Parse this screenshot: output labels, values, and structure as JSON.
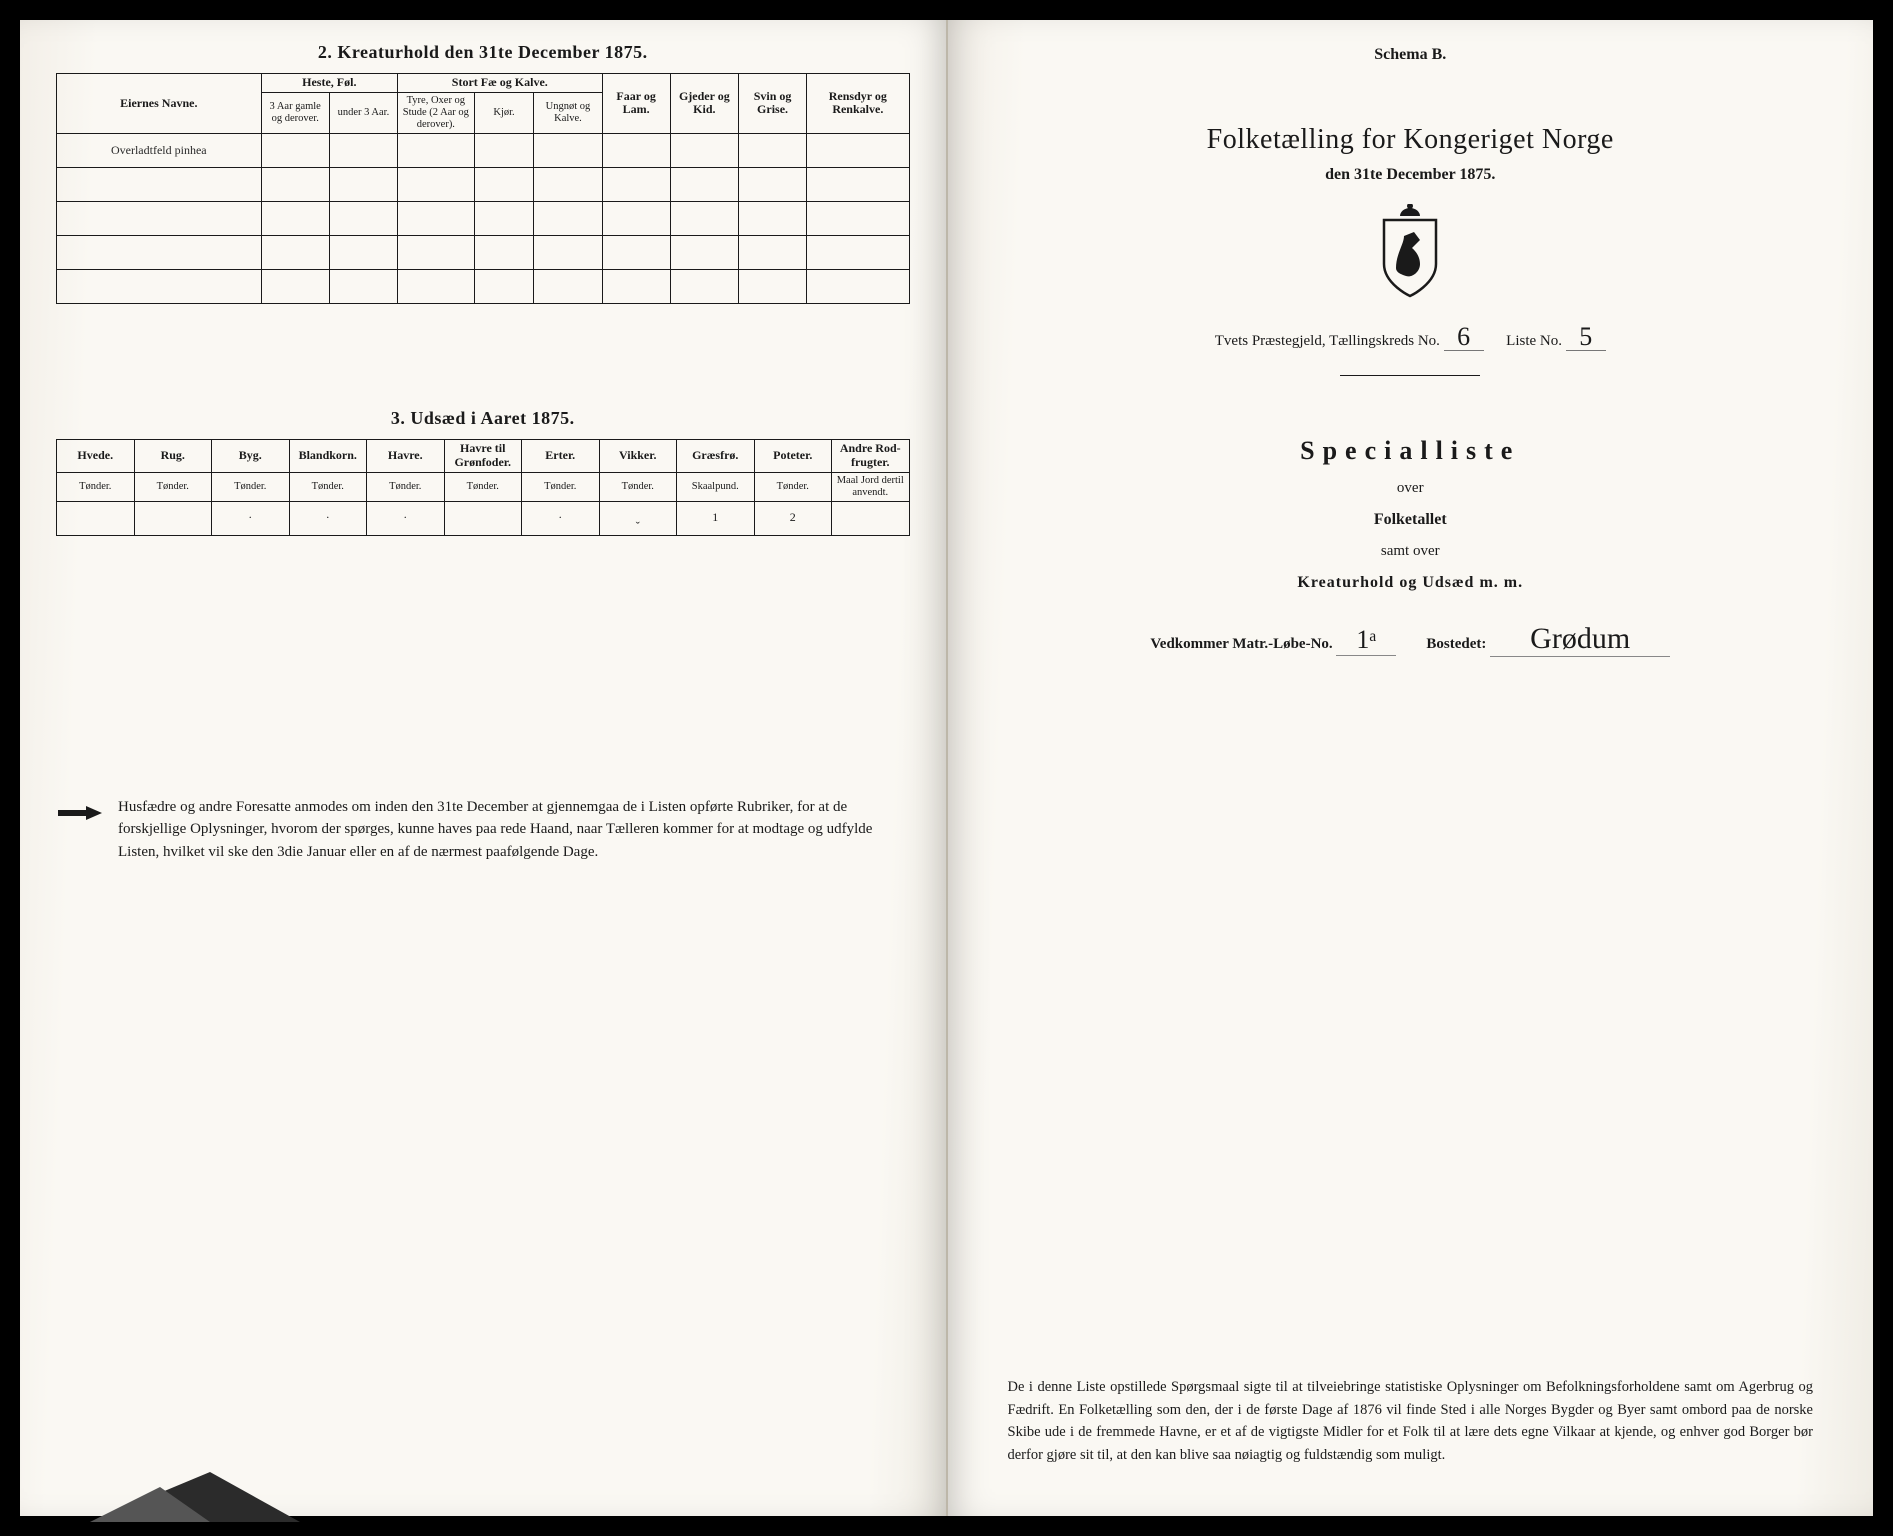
{
  "left": {
    "section2_title": "2.  Kreaturhold den 31te December 1875.",
    "table2": {
      "owners": "Eiernes Navne.",
      "heste_group": "Heste, Føl.",
      "heste_a": "3 Aar gamle og derover.",
      "heste_b": "under 3 Aar.",
      "stort_group": "Stort Fæ og Kalve.",
      "stort_a": "Tyre, Oxer og Stude (2 Aar og derover).",
      "stort_b": "Kjør.",
      "stort_c": "Ungnøt og Kalve.",
      "faar": "Faar og Lam.",
      "gjeder": "Gjeder og Kid.",
      "svin": "Svin og Grise.",
      "ren": "Rensdyr og Renkalve.",
      "hand_row": "Overladtfeld pinhea"
    },
    "section3_title": "3.  Udsæd i Aaret 1875.",
    "table3": {
      "cols": [
        {
          "h": "Hvede.",
          "s": "Tønder."
        },
        {
          "h": "Rug.",
          "s": "Tønder."
        },
        {
          "h": "Byg.",
          "s": "Tønder."
        },
        {
          "h": "Blandkorn.",
          "s": "Tønder."
        },
        {
          "h": "Havre.",
          "s": "Tønder."
        },
        {
          "h": "Havre til Grønfoder.",
          "s": "Tønder."
        },
        {
          "h": "Erter.",
          "s": "Tønder."
        },
        {
          "h": "Vikker.",
          "s": "Tønder."
        },
        {
          "h": "Græsfrø.",
          "s": "Skaalpund."
        },
        {
          "h": "Poteter.",
          "s": "Tønder."
        },
        {
          "h": "Andre Rod-frugter.",
          "s": "Maal Jord dertil anvendt."
        }
      ],
      "row": [
        "",
        "",
        "·",
        "·",
        "·",
        "",
        "·",
        "ˬ",
        "1",
        "2",
        ""
      ]
    },
    "notice": "Husfædre og andre Foresatte anmodes om inden den 31te December at gjennemgaa de i Listen opførte Rubriker, for at de forskjellige Oplysninger, hvorom der spørges, kunne haves paa rede Haand, naar Tælleren kommer for at modtage og udfylde Listen, hvilket vil ske den 3die Januar eller en af de nærmest paafølgende Dage."
  },
  "right": {
    "schema": "Schema B.",
    "title": "Folketælling for Kongeriget Norge",
    "subtitle": "den 31te December 1875.",
    "kreds_prefix": "Tvets Præstegjeld,  Tællingskreds No.",
    "kreds_no": "6",
    "liste_label": "Liste No.",
    "liste_no": "5",
    "special": "Specialliste",
    "over": "over",
    "folketallet": "Folketallet",
    "samt": "samt over",
    "kreatur": "Kreaturhold og Udsæd m. m.",
    "matr_label": "Vedkommer Matr.-Løbe-No.",
    "matr_no": "1ᵃ",
    "bostedet_label": "Bostedet:",
    "bostedet": "Grødum",
    "bottom": "De i denne Liste opstillede Spørgsmaal sigte til at tilveiebringe statistiske Oplysninger om Befolkningsforholdene samt om Agerbrug og Fædrift.  En Folketælling som den, der i de første Dage af 1876 vil finde Sted i alle Norges Bygder og Byer samt ombord paa de norske Skibe ude i de fremmede Havne, er et af de vigtigste Midler for et Folk til at lære dets egne Vilkaar at kjende, og enhver god Borger bør derfor gjøre sit til, at den kan blive saa nøiagtig og fuldstændig som muligt."
  },
  "colors": {
    "ink": "#1a1a1a",
    "paper": "#faf8f3",
    "black": "#000000"
  }
}
